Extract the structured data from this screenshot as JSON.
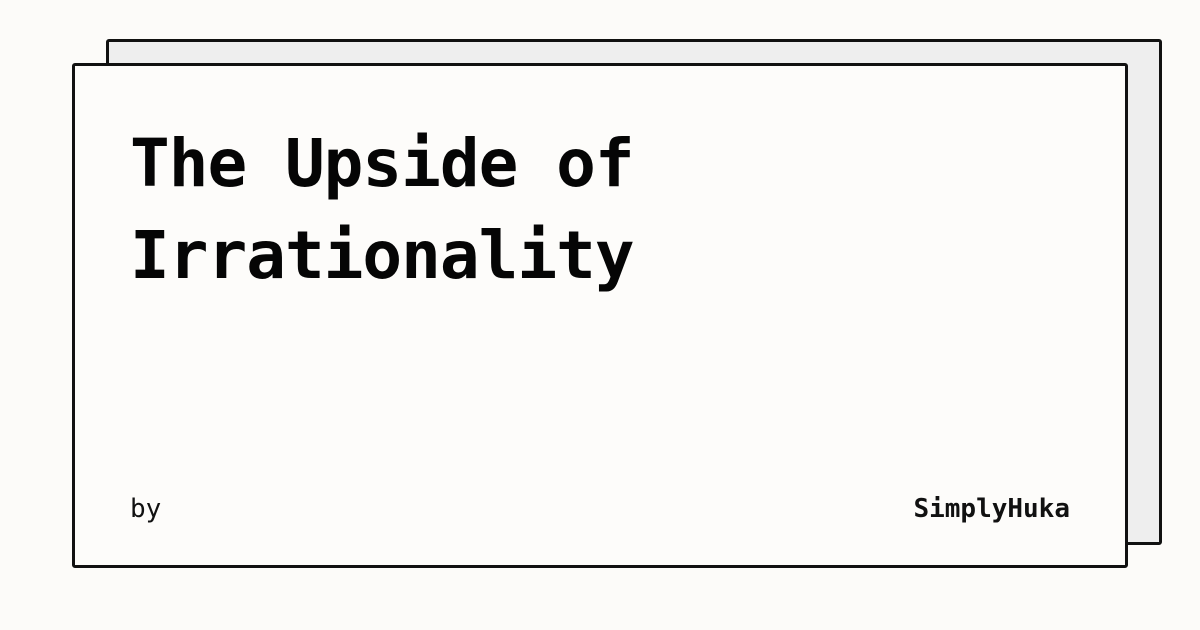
{
  "card": {
    "title": "The Upside of Irrationality",
    "by_label": "by",
    "author": "SimplyHuka"
  },
  "colors": {
    "background": "#fcfbf9",
    "card_front": "#fdfcfa",
    "card_back": "#eeeeee",
    "border": "#111111",
    "text": "#050505"
  }
}
